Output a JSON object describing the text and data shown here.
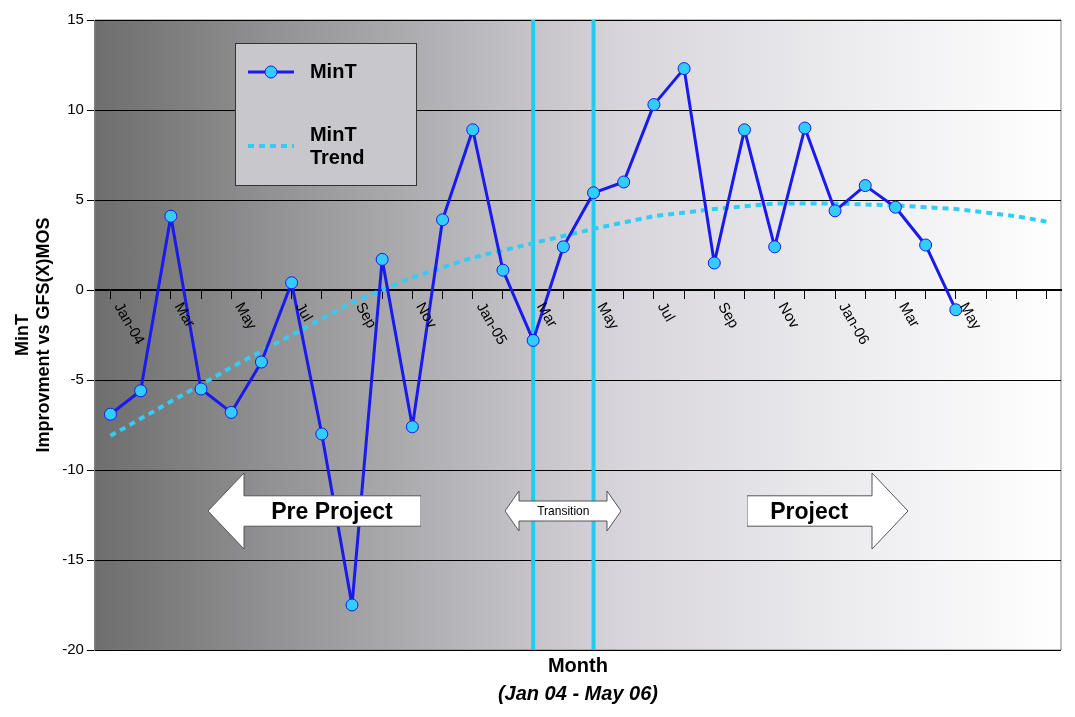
{
  "chart_data": {
    "type": "line",
    "xlabel": "Month",
    "ylabel": "MinT\nImprovment vs GFS(X)MOS",
    "x": [
      "2004-01",
      "2004-02",
      "2004-03",
      "2004-04",
      "2004-05",
      "2004-06",
      "2004-07",
      "2004-08",
      "2004-09",
      "2004-10",
      "2004-11",
      "2004-12",
      "2005-01",
      "2005-02",
      "2005-03",
      "2005-04",
      "2005-05",
      "2005-06",
      "2005-07",
      "2005-08",
      "2005-09",
      "2005-10",
      "2005-11",
      "2005-12",
      "2006-01",
      "2006-02",
      "2006-03",
      "2006-04",
      "2006-05"
    ],
    "series": [
      {
        "name": "MinT",
        "color": "#1a1aee",
        "marker": "circle",
        "line_style": "solid",
        "values": [
          -6.9,
          -5.6,
          4.1,
          -5.5,
          -6.8,
          -4.0,
          0.4,
          -8.0,
          -17.5,
          1.7,
          -7.6,
          3.9,
          8.9,
          1.1,
          -2.8,
          2.4,
          5.4,
          6.0,
          10.3,
          12.3,
          1.5,
          8.9,
          2.4,
          9.0,
          4.4,
          5.8,
          4.6,
          2.5,
          -1.1
        ]
      },
      {
        "name": "MinT Trend",
        "color": "#33ccf5",
        "marker": "none",
        "line_style": "dotted",
        "x": [
          "2004-01",
          "2004-03",
          "2004-05",
          "2004-07",
          "2004-09",
          "2004-11",
          "2005-01",
          "2005-03",
          "2005-05",
          "2005-07",
          "2005-09",
          "2005-11",
          "2006-01",
          "2006-03",
          "2006-05",
          "2006-07",
          "2006-08"
        ],
        "values": [
          -8.1,
          -6.2,
          -4.3,
          -2.5,
          -0.7,
          0.7,
          1.8,
          2.6,
          3.4,
          4.1,
          4.5,
          4.8,
          4.8,
          4.7,
          4.5,
          4.1,
          3.8
        ]
      }
    ],
    "xlim": [
      "2003-12-16",
      "2006-08-16"
    ],
    "xticks": [
      {
        "value": "2004-01",
        "label": "Jan-04"
      },
      {
        "value": "2004-02",
        "label": null
      },
      {
        "value": "2004-03",
        "label": "Mar"
      },
      {
        "value": "2004-04",
        "label": null
      },
      {
        "value": "2004-05",
        "label": "May"
      },
      {
        "value": "2004-06",
        "label": null
      },
      {
        "value": "2004-07",
        "label": "Jul"
      },
      {
        "value": "2004-08",
        "label": null
      },
      {
        "value": "2004-09",
        "label": "Sep"
      },
      {
        "value": "2004-10",
        "label": null
      },
      {
        "value": "2004-11",
        "label": "Nov"
      },
      {
        "value": "2004-12",
        "label": null
      },
      {
        "value": "2005-01",
        "label": "Jan-05"
      },
      {
        "value": "2005-02",
        "label": null
      },
      {
        "value": "2005-03",
        "label": "Mar"
      },
      {
        "value": "2005-04",
        "label": null
      },
      {
        "value": "2005-05",
        "label": "May"
      },
      {
        "value": "2005-06",
        "label": null
      },
      {
        "value": "2005-07",
        "label": "Jul"
      },
      {
        "value": "2005-08",
        "label": null
      },
      {
        "value": "2005-09",
        "label": "Sep"
      },
      {
        "value": "2005-10",
        "label": null
      },
      {
        "value": "2005-11",
        "label": "Nov"
      },
      {
        "value": "2005-12",
        "label": null
      },
      {
        "value": "2006-01",
        "label": "Jan-06"
      },
      {
        "value": "2006-02",
        "label": null
      },
      {
        "value": "2006-03",
        "label": "Mar"
      },
      {
        "value": "2006-04",
        "label": null
      },
      {
        "value": "2006-05",
        "label": "May"
      },
      {
        "value": "2006-06",
        "label": null
      },
      {
        "value": "2006-07",
        "label": null
      },
      {
        "value": "2006-08",
        "label": null
      }
    ],
    "ylim": [
      -20,
      15
    ],
    "yticks": [
      -20,
      -15,
      -10,
      -5,
      0,
      5,
      10,
      15
    ],
    "grid": "y",
    "legend": "top left",
    "ref_lines": [
      {
        "axis": "x",
        "value": "2005-03",
        "color": "#22ccee"
      },
      {
        "axis": "x",
        "value": "2005-05",
        "color": "#22ccee"
      }
    ],
    "annotations": [
      "Pre Project",
      "Transition",
      "Project",
      "(Jan 04 - May 06)"
    ]
  }
}
